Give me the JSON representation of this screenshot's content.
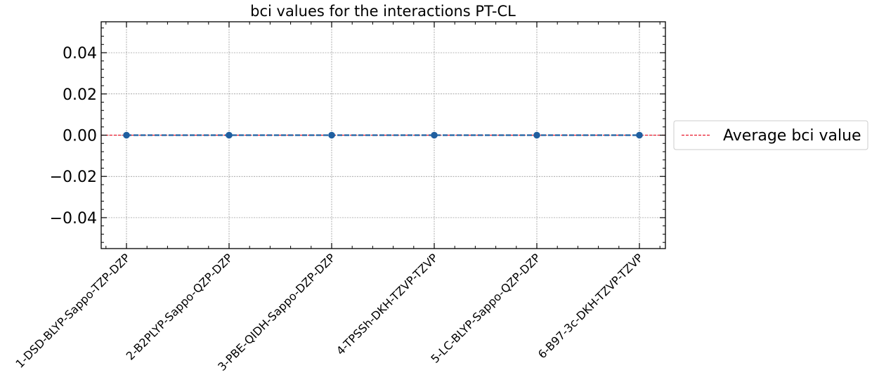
{
  "chart_data": {
    "type": "line",
    "title": "bci values for the interactions PT-CL",
    "xlabel": "",
    "ylabel": "",
    "categories": [
      "1-DSD-BLYP-Sappo-TZP-DZP",
      "2-B2PLYP-Sappo-QZP-DZP",
      "3-PBE-QIDH-Sappo-DZP-DZP",
      "4-TPSSh-DKH-TZVP-TZVP",
      "5-LC-BLYP-Sappo-QZP-DZP",
      "6-B97-3c-DKH-TZVP-TZVP"
    ],
    "series": [
      {
        "values": [
          0,
          0,
          0,
          0,
          0,
          0
        ],
        "color": "#1f5fa0",
        "marker": "circle",
        "linestyle": "dashed"
      }
    ],
    "reference_line": {
      "name": "Average bci value",
      "value": 0.0,
      "color": "#e8192c",
      "linestyle": "dashed"
    },
    "ylim": [
      -0.055,
      0.055
    ],
    "yticks": [
      "0.04",
      "0.02",
      "0.00",
      "−0.02",
      "−0.04"
    ],
    "ytick_values": [
      0.04,
      0.02,
      0.0,
      -0.02,
      -0.04
    ],
    "grid": true,
    "legend": {
      "placement": "outside-right",
      "entries": [
        "Average bci value"
      ]
    }
  }
}
